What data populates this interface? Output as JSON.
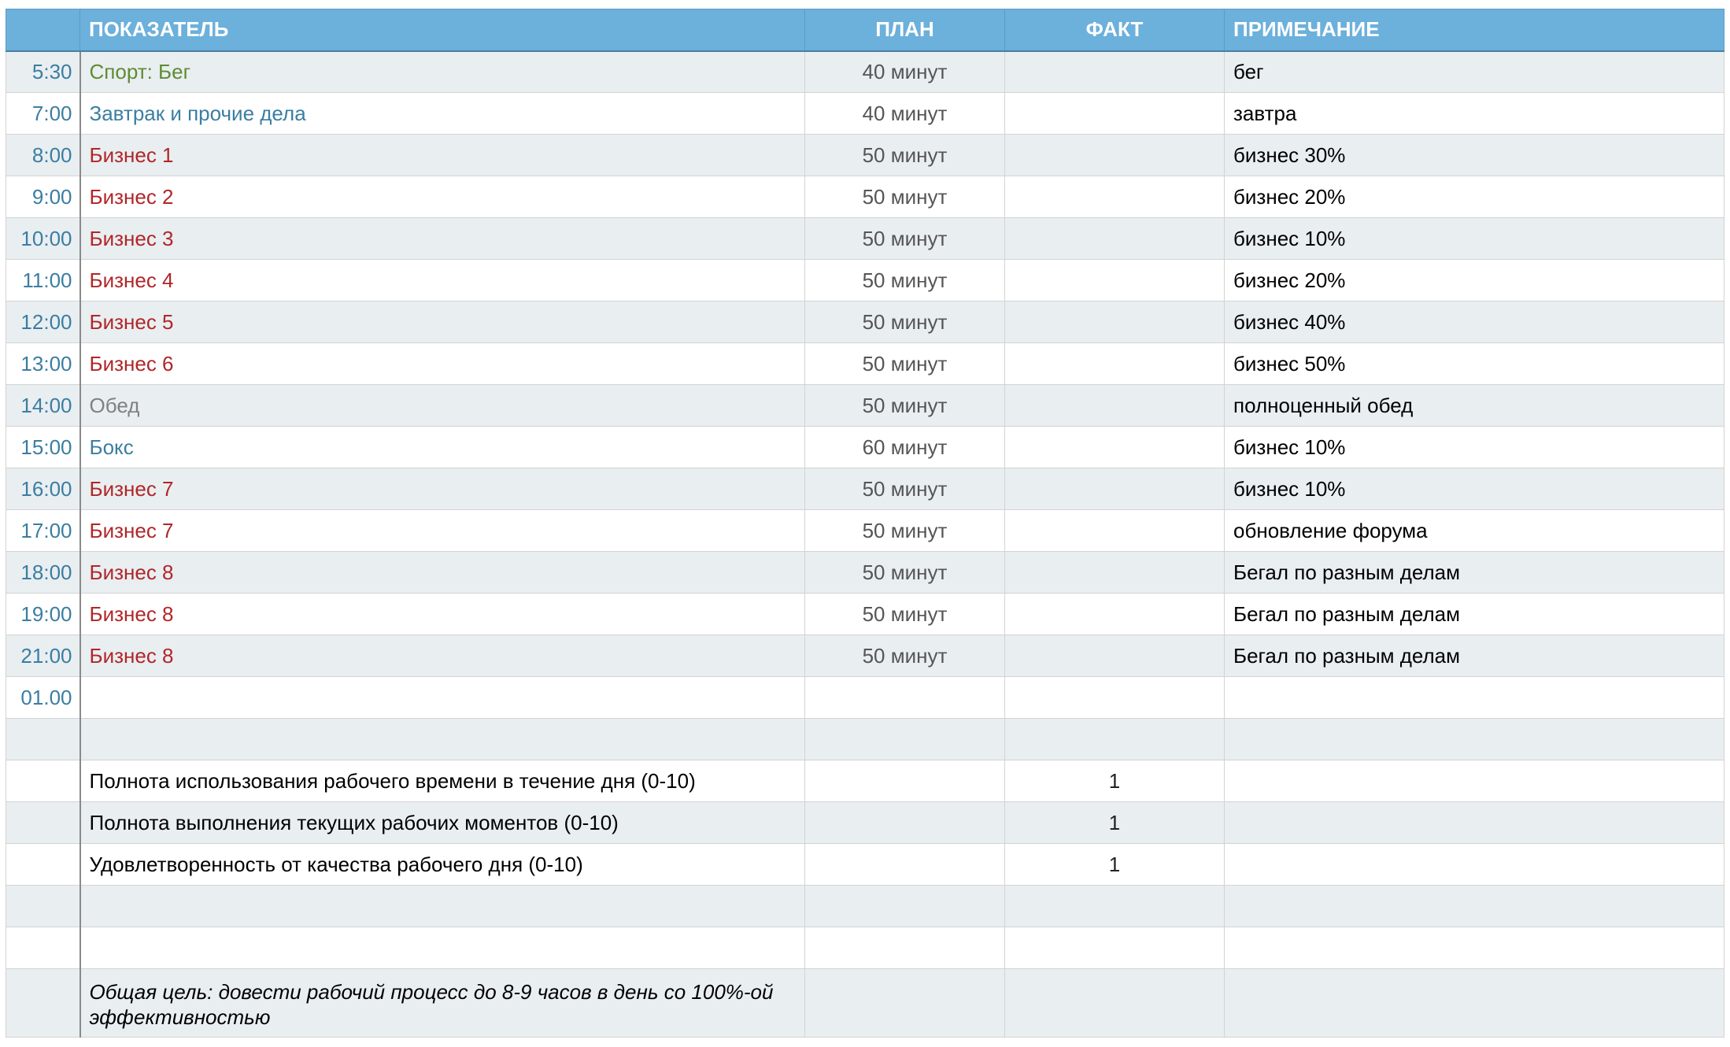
{
  "header": [
    "ПОКАЗАТЕЛЬ",
    "ПЛАН",
    "ФАКТ",
    "ПРИМЕЧАНИЕ"
  ],
  "schedule": [
    {
      "time": "5:30",
      "task": "Спорт: Бег",
      "plan": "40 минут",
      "note": "бег"
    },
    {
      "time": "7:00",
      "task": "Завтрак и прочие дела",
      "plan": "40 минут",
      "note": "завтра"
    },
    {
      "time": "8:00",
      "task": "Бизнес 1",
      "plan": "50 минут",
      "note": "бизнес 30%"
    },
    {
      "time": "9:00",
      "task": "Бизнес 2",
      "plan": "50 минут",
      "note": "бизнес 20%"
    },
    {
      "time": "10:00",
      "task": "Бизнес 3",
      "plan": "50 минут",
      "note": "бизнес 10%"
    },
    {
      "time": "11:00",
      "task": "Бизнес 4",
      "plan": "50 минут",
      "note": "бизнес 20%"
    },
    {
      "time": "12:00",
      "task": "Бизнес 5",
      "plan": "50 минут",
      "note": "бизнес 40%"
    },
    {
      "time": "13:00",
      "task": "Бизнес 6",
      "plan": "50 минут",
      "note": "бизнес 50%"
    },
    {
      "time": "14:00",
      "task": "Обед",
      "plan": "50 минут",
      "note": "полноценный обед"
    },
    {
      "time": "15:00",
      "task": "Бокс",
      "plan": "60 минут",
      "note": "бизнес 10%"
    },
    {
      "time": "16:00",
      "task": "Бизнес 7",
      "plan": "50 минут",
      "note": "бизнес 10%"
    },
    {
      "time": "17:00",
      "task": "Бизнес 7",
      "plan": "50 минут",
      "note": "обновление форума"
    },
    {
      "time": "18:00",
      "task": "Бизнес 8",
      "plan": "50 минут",
      "note": "Бегал по разным делам"
    },
    {
      "time": "19:00",
      "task": "Бизнес 8",
      "plan": "50 минут",
      "note": "Бегал по разным делам"
    },
    {
      "time": "21:00",
      "task": "Бизнес 8",
      "plan": "50 минут",
      "note": "Бегал по разным делам"
    }
  ],
  "extra_time": "01.00",
  "metrics": [
    {
      "label": "Полнота использования рабочего времени в течение дня (0-10)",
      "fact": 1
    },
    {
      "label": "Полнота выполнения текущих рабочих моментов (0-10)",
      "fact": 1
    },
    {
      "label": "Удовлетворенность от качества рабочего дня (0-10)",
      "fact": 1
    }
  ],
  "goal": "Общая цель: довести рабочий процесс до 8-9 часов в день со 100%-ой эффективностью"
}
